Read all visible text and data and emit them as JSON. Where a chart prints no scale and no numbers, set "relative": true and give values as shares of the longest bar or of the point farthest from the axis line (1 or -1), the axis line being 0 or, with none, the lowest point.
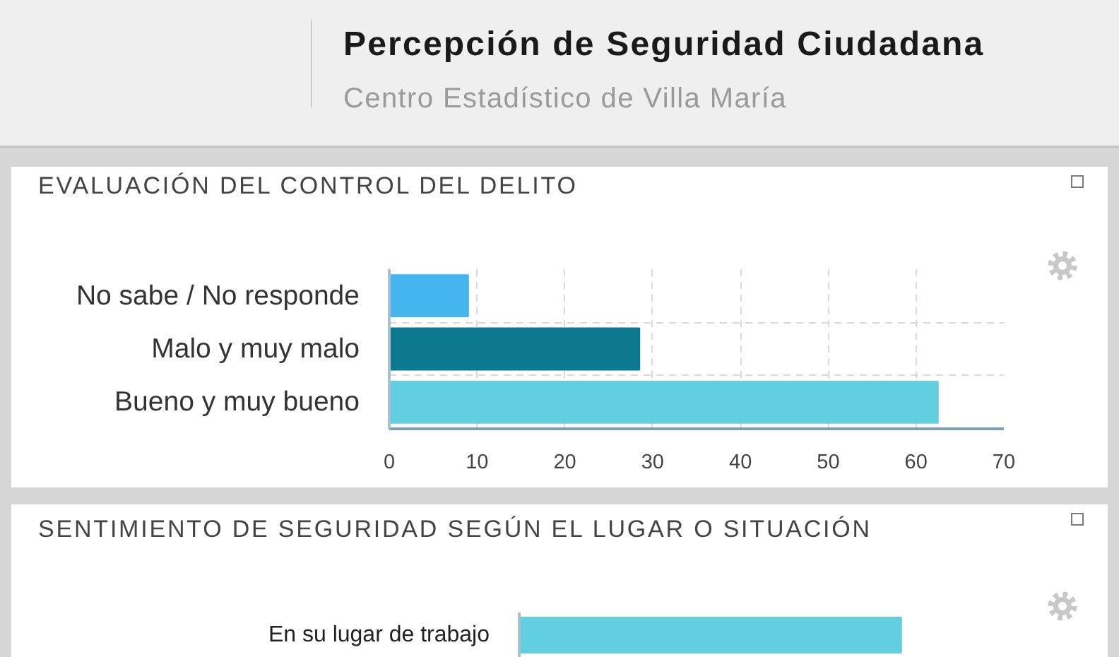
{
  "chart_data": [
    {
      "type": "other",
      "title": "Percepción de Seguridad Ciudadana",
      "subtitle": "Centro Estadístico de Villa María"
    },
    {
      "type": "bar",
      "orientation": "horizontal",
      "title": "EVALUACIÓN DEL CONTROL DEL DELITO",
      "categories": [
        "No sabe / No responde",
        "Malo y muy malo",
        "Bueno y muy bueno"
      ],
      "values": [
        9,
        28.5,
        62.5
      ],
      "colors": [
        "#45b5ee",
        "#0b7890",
        "#62cfe0"
      ],
      "xlim": [
        0,
        70
      ],
      "xticks": [
        0,
        10,
        20,
        30,
        40,
        50,
        60,
        70
      ],
      "grid": true
    },
    {
      "type": "bar",
      "orientation": "horizontal",
      "title": "SENTIMIENTO DE SEGURIDAD SEGÚN EL LUGAR O SITUACIÓN",
      "categories": [
        "En su lugar de trabajo"
      ],
      "values": [
        1
      ],
      "colors": [
        "#62cfe0"
      ],
      "relative": true
    }
  ]
}
